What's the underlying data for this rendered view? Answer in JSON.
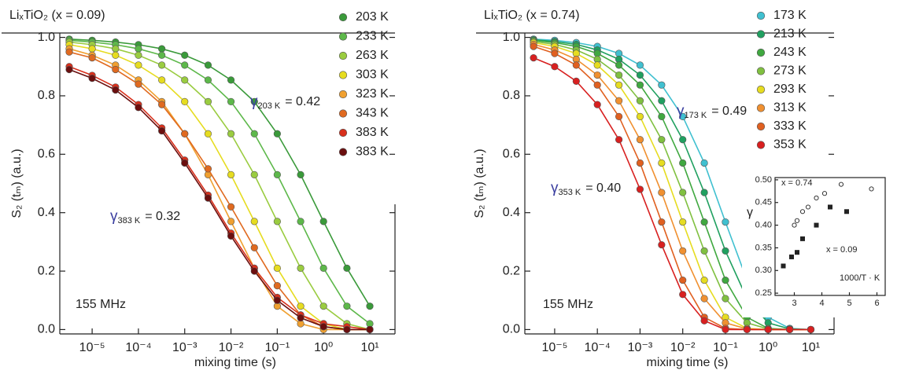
{
  "chart_data": [
    {
      "type": "line",
      "title": "LiₓTiO₂ (x = 0.09)",
      "xlabel": "mixing time (s)",
      "ylabel": "S₂ (tₘ) (a.u.)",
      "log_x": true,
      "xlim": [
        2e-06,
        35
      ],
      "xticks": [
        {
          "value": 1e-05,
          "label": "10⁻⁵"
        },
        {
          "value": 0.0001,
          "label": "10⁻⁴"
        },
        {
          "value": 0.001,
          "label": "10⁻³"
        },
        {
          "value": 0.01,
          "label": "10⁻²"
        },
        {
          "value": 0.1,
          "label": "10⁻¹"
        },
        {
          "value": 1,
          "label": "10⁰"
        },
        {
          "value": 10,
          "label": "10¹"
        }
      ],
      "ylim": [
        -0.015,
        1.015
      ],
      "yticks": [
        {
          "value": 0,
          "label": "0.0"
        },
        0.2,
        0.4,
        0.6,
        0.8,
        {
          "value": 1,
          "label": "1.0"
        }
      ],
      "x": [
        3.2e-06,
        1e-05,
        3.2e-05,
        0.0001,
        0.00032,
        0.001,
        0.0032,
        0.01,
        0.032,
        0.1,
        0.32,
        1,
        3.2,
        10
      ],
      "series": [
        {
          "name": "203 K",
          "color": "#3a9a3a",
          "values": [
            0.994,
            0.99,
            0.984,
            0.975,
            0.961,
            0.939,
            0.905,
            0.854,
            0.78,
            0.67,
            0.53,
            0.37,
            0.21,
            0.08
          ]
        },
        {
          "name": "233 K",
          "color": "#5db84a",
          "values": [
            0.99,
            0.984,
            0.975,
            0.961,
            0.939,
            0.905,
            0.854,
            0.78,
            0.67,
            0.53,
            0.37,
            0.21,
            0.08,
            0.02
          ]
        },
        {
          "name": "263 K",
          "color": "#9acc40",
          "values": [
            0.984,
            0.975,
            0.961,
            0.939,
            0.905,
            0.854,
            0.78,
            0.67,
            0.53,
            0.37,
            0.21,
            0.08,
            0.02,
            0
          ]
        },
        {
          "name": "303 K",
          "color": "#e6dc20",
          "values": [
            0.975,
            0.961,
            0.939,
            0.905,
            0.854,
            0.78,
            0.67,
            0.53,
            0.37,
            0.21,
            0.08,
            0.02,
            0,
            0
          ]
        },
        {
          "name": "323 K",
          "color": "#f0a030",
          "values": [
            0.961,
            0.939,
            0.905,
            0.854,
            0.78,
            0.67,
            0.53,
            0.37,
            0.21,
            0.08,
            0.02,
            0,
            0,
            0
          ]
        },
        {
          "name": "343 K",
          "color": "#e06a20",
          "values": [
            0.95,
            0.93,
            0.89,
            0.84,
            0.77,
            0.67,
            0.55,
            0.42,
            0.28,
            0.15,
            0.05,
            0.01,
            0,
            0
          ]
        },
        {
          "name": "383 K",
          "color": "#d8301c",
          "values": [
            0.9,
            0.87,
            0.83,
            0.77,
            0.69,
            0.58,
            0.46,
            0.33,
            0.21,
            0.11,
            0.05,
            0.02,
            0.01,
            0
          ]
        },
        {
          "name": "383 K",
          "color": "#6b0f0f",
          "values": [
            0.89,
            0.86,
            0.82,
            0.76,
            0.68,
            0.57,
            0.45,
            0.32,
            0.2,
            0.1,
            0.04,
            0.01,
            0,
            0
          ]
        }
      ],
      "annotations": [
        {
          "symbol": "γ",
          "subscript": "203 K",
          "text": "= 0.42",
          "color": "#3b3fa0"
        },
        {
          "symbol": "γ",
          "subscript": "383 K",
          "text": "= 0.32",
          "color": "#3b3fa0"
        },
        {
          "text": "155 MHz",
          "color": "#222222"
        }
      ],
      "legend": "upper right"
    },
    {
      "type": "line",
      "title": "LiₓTiO₂ (x = 0.74)",
      "xlabel": "mixing time (s)",
      "ylabel": "S₂ (tₘ) (a.u.)",
      "log_x": true,
      "xlim": [
        2e-06,
        35
      ],
      "xticks": [
        {
          "value": 1e-05,
          "label": "10⁻⁵"
        },
        {
          "value": 0.0001,
          "label": "10⁻⁴"
        },
        {
          "value": 0.001,
          "label": "10⁻³"
        },
        {
          "value": 0.01,
          "label": "10⁻²"
        },
        {
          "value": 0.1,
          "label": "10⁻¹"
        },
        {
          "value": 1,
          "label": "10⁰"
        },
        {
          "value": 10,
          "label": "10¹"
        }
      ],
      "ylim": [
        -0.015,
        1.015
      ],
      "yticks": [
        {
          "value": 0,
          "label": "0.0"
        },
        0.2,
        0.4,
        0.6,
        0.8,
        {
          "value": 1,
          "label": "1.0"
        }
      ],
      "x": [
        3.2e-06,
        1e-05,
        3.2e-05,
        0.0001,
        0.00032,
        0.001,
        0.0032,
        0.01,
        0.032,
        0.1,
        0.32,
        1,
        3.2,
        10
      ],
      "series": [
        {
          "name": "173 K",
          "color": "#40c0d0",
          "values": [
            0.994,
            0.99,
            0.982,
            0.969,
            0.945,
            0.905,
            0.837,
            0.729,
            0.57,
            0.368,
            0.169,
            0.042,
            0.004,
            0
          ]
        },
        {
          "name": "213 K",
          "color": "#20a060",
          "values": [
            0.992,
            0.986,
            0.976,
            0.957,
            0.925,
            0.871,
            0.783,
            0.65,
            0.469,
            0.269,
            0.106,
            0.023,
            0.002,
            0
          ]
        },
        {
          "name": "243 K",
          "color": "#40a840",
          "values": [
            0.99,
            0.982,
            0.969,
            0.945,
            0.905,
            0.837,
            0.729,
            0.57,
            0.368,
            0.169,
            0.042,
            0.004,
            0,
            0
          ]
        },
        {
          "name": "273 K",
          "color": "#80c040",
          "values": [
            0.986,
            0.976,
            0.957,
            0.925,
            0.871,
            0.783,
            0.65,
            0.469,
            0.269,
            0.106,
            0.023,
            0.002,
            0,
            0
          ]
        },
        {
          "name": "293 K",
          "color": "#e6dc20",
          "values": [
            0.982,
            0.969,
            0.945,
            0.905,
            0.837,
            0.729,
            0.57,
            0.368,
            0.169,
            0.042,
            0.004,
            0,
            0,
            0
          ]
        },
        {
          "name": "313 K",
          "color": "#f09030",
          "values": [
            0.976,
            0.957,
            0.925,
            0.871,
            0.783,
            0.65,
            0.469,
            0.269,
            0.106,
            0.023,
            0.002,
            0,
            0,
            0
          ]
        },
        {
          "name": "333 K",
          "color": "#e06020",
          "values": [
            0.969,
            0.945,
            0.905,
            0.837,
            0.729,
            0.57,
            0.368,
            0.169,
            0.042,
            0.004,
            0,
            0,
            0,
            0
          ]
        },
        {
          "name": "353 K",
          "color": "#d82020",
          "values": [
            0.93,
            0.9,
            0.85,
            0.77,
            0.65,
            0.48,
            0.29,
            0.12,
            0.03,
            0,
            0,
            0,
            0,
            0
          ]
        }
      ],
      "annotations": [
        {
          "symbol": "γ",
          "subscript": "173 K",
          "text": "= 0.49",
          "color": "#3b3fa0"
        },
        {
          "symbol": "γ",
          "subscript": "353 K",
          "text": "= 0.40",
          "color": "#3b3fa0"
        },
        {
          "text": "155 MHz",
          "color": "#222222"
        }
      ],
      "legend": "upper right"
    },
    {
      "type": "scatter",
      "xlabel": "1000/T · K",
      "ylabel": "γ",
      "xlim": [
        2.3,
        6.3
      ],
      "xticks": [
        3,
        4,
        5,
        6
      ],
      "ylim": [
        0.245,
        0.505
      ],
      "yticks": [
        0.25,
        {
          "value": 0.3,
          "label": "0.30"
        },
        0.35,
        {
          "value": 0.4,
          "label": "0.40"
        },
        0.45,
        {
          "value": 0.5,
          "label": "0.50"
        }
      ],
      "series": [
        {
          "name": "x = 0.74",
          "marker": "open-circle",
          "color": "#222222",
          "x": [
            3,
            3.1,
            3.3,
            3.5,
            3.8,
            4.1,
            4.7,
            5.8
          ],
          "values": [
            0.4,
            0.41,
            0.43,
            0.44,
            0.46,
            0.47,
            0.49,
            0.48
          ]
        },
        {
          "name": "x = 0.09",
          "marker": "square",
          "color": "#222222",
          "x": [
            2.6,
            2.9,
            3.1,
            3.3,
            3.8,
            4.3,
            4.9
          ],
          "values": [
            0.31,
            0.33,
            0.34,
            0.37,
            0.4,
            0.44,
            0.43
          ]
        }
      ]
    }
  ]
}
